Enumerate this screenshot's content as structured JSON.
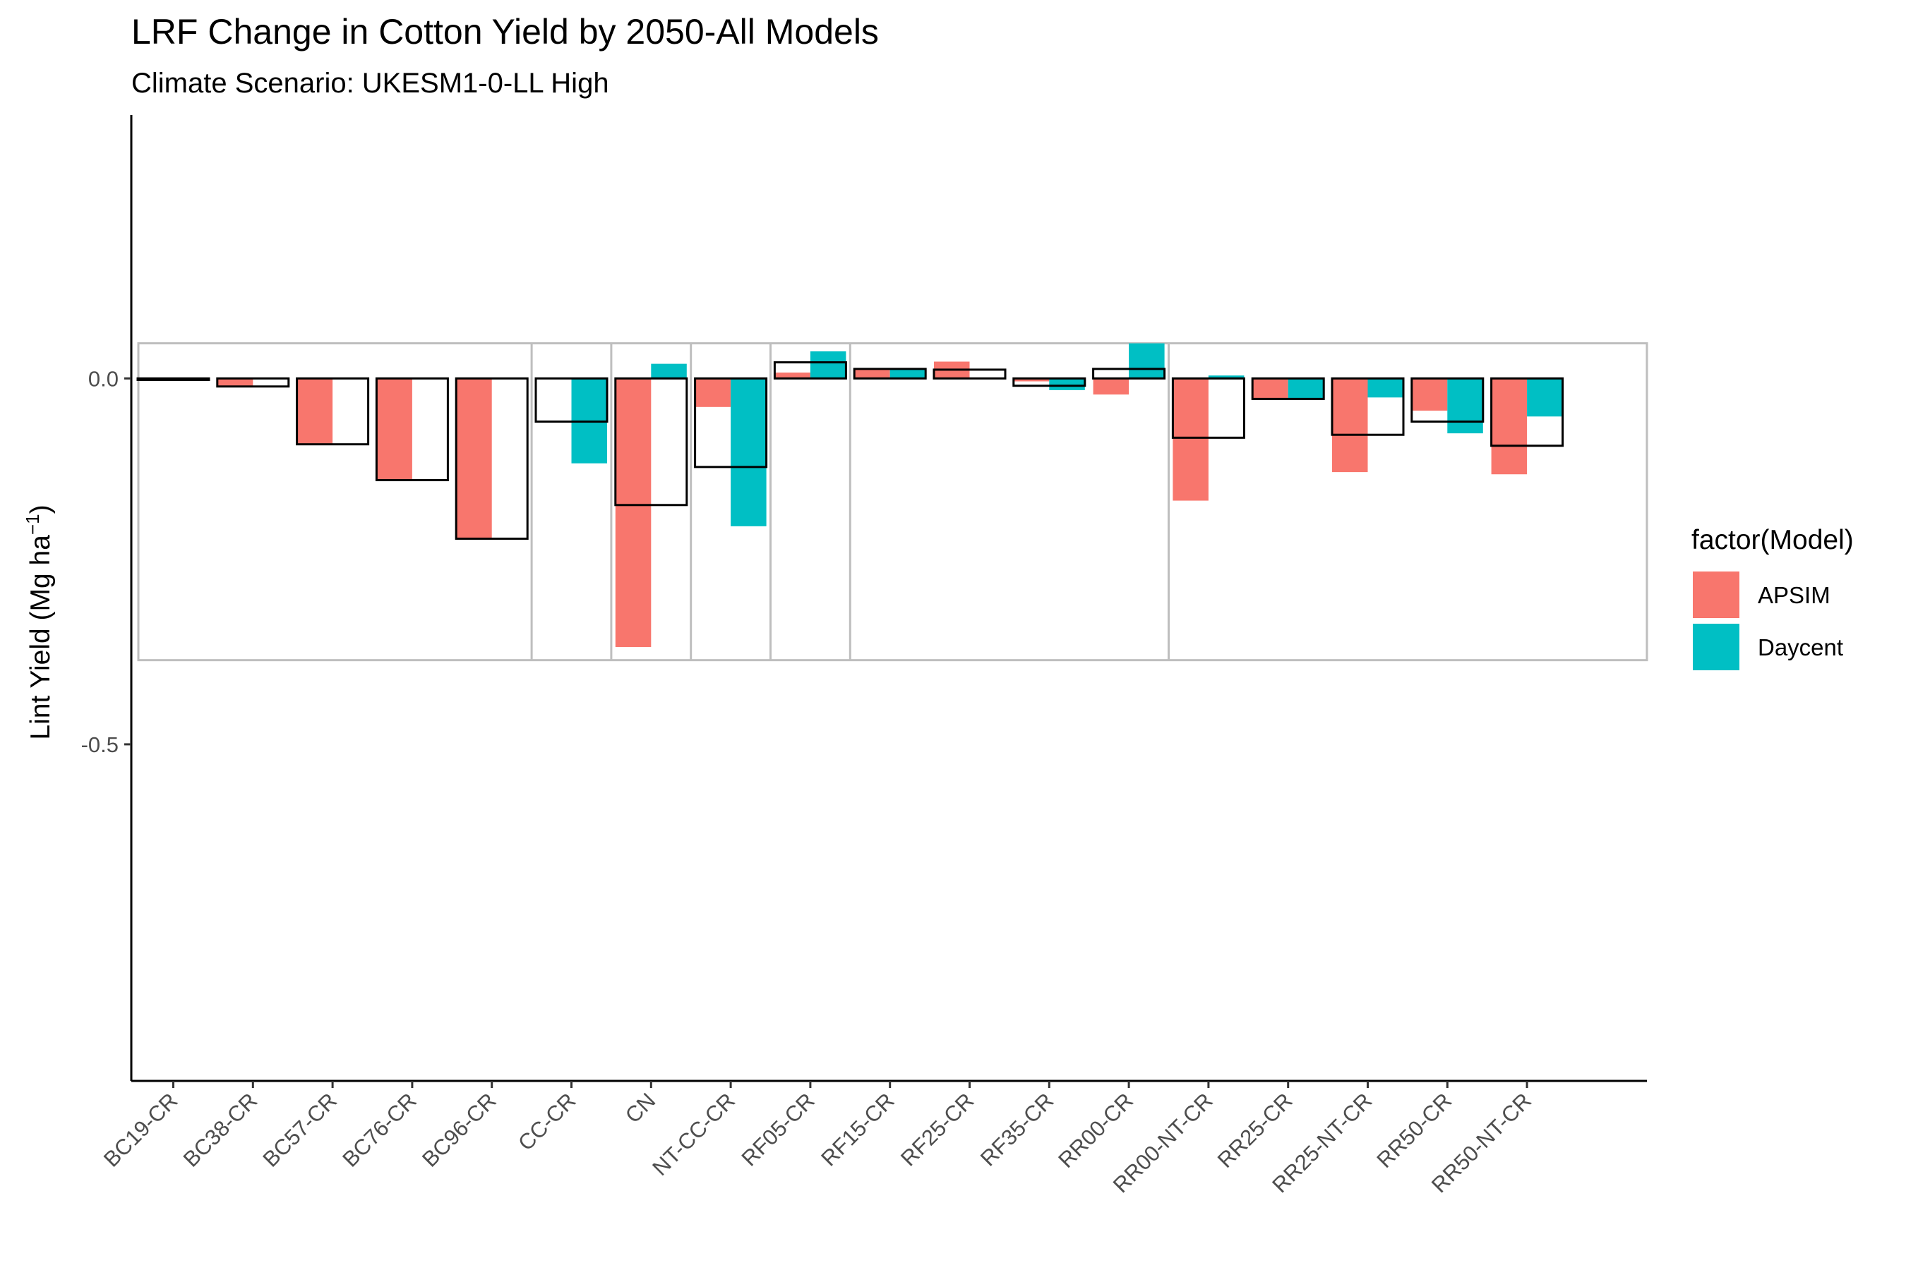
{
  "chart_data": {
    "type": "bar",
    "title": "LRF Change in Cotton Yield by 2050-All Models",
    "subtitle": "Climate Scenario: UKESM1-0-LL High",
    "xlabel": "",
    "ylabel": "Lint Yield (Mg ha",
    "ylabel_superscript": "−1",
    "ylabel_close": ")",
    "ylim": [
      -0.96,
      0.36
    ],
    "y_ticks": [
      0.0,
      -0.5
    ],
    "y_tick_labels": [
      "0.0",
      "-0.5"
    ],
    "grid": false,
    "legend": {
      "title": "factor(Model)",
      "position": "right",
      "entries": [
        {
          "name": "APSIM",
          "color": "#F8766D"
        },
        {
          "name": "Daycent",
          "color": "#00BFC4"
        }
      ]
    },
    "categories": [
      "BC19-CR",
      "BC38-CR",
      "BC57-CR",
      "BC76-CR",
      "BC96-CR",
      "CC-CR",
      "CN",
      "NT-CC-CR",
      "RF05-CR",
      "RF15-CR",
      "RF25-CR",
      "RF35-CR",
      "RR00-CR",
      "RR00-NT-CR",
      "RR25-CR",
      "RR25-NT-CR",
      "RR50-CR",
      "RR50-NT-CR"
    ],
    "series": [
      {
        "name": "APSIM",
        "color": "#F8766D",
        "values": [
          -0.002,
          -0.011,
          -0.09,
          -0.139,
          -0.219,
          null,
          -0.367,
          -0.039,
          0.008,
          0.013,
          0.023,
          -0.004,
          -0.022,
          -0.167,
          -0.028,
          -0.128,
          -0.044,
          -0.131
        ]
      },
      {
        "name": "Daycent",
        "color": "#00BFC4",
        "values": [
          null,
          null,
          null,
          null,
          null,
          -0.116,
          0.02,
          -0.202,
          0.037,
          0.013,
          null,
          -0.016,
          0.048,
          0.004,
          -0.028,
          -0.026,
          -0.075,
          -0.052
        ]
      }
    ],
    "mean_outline": {
      "description_values": [
        -0.002,
        -0.011,
        -0.09,
        -0.139,
        -0.219,
        -0.059,
        -0.173,
        -0.121,
        0.022,
        0.013,
        0.012,
        -0.01,
        0.013,
        -0.081,
        -0.028,
        -0.077,
        -0.059,
        -0.092
      ],
      "color": "#000000"
    },
    "group_boxes": {
      "color": "#BEBEBE",
      "range": [
        -0.385,
        0.048
      ],
      "boundaries": [
        0,
        5,
        6,
        7,
        8,
        9,
        13,
        18
      ]
    }
  }
}
